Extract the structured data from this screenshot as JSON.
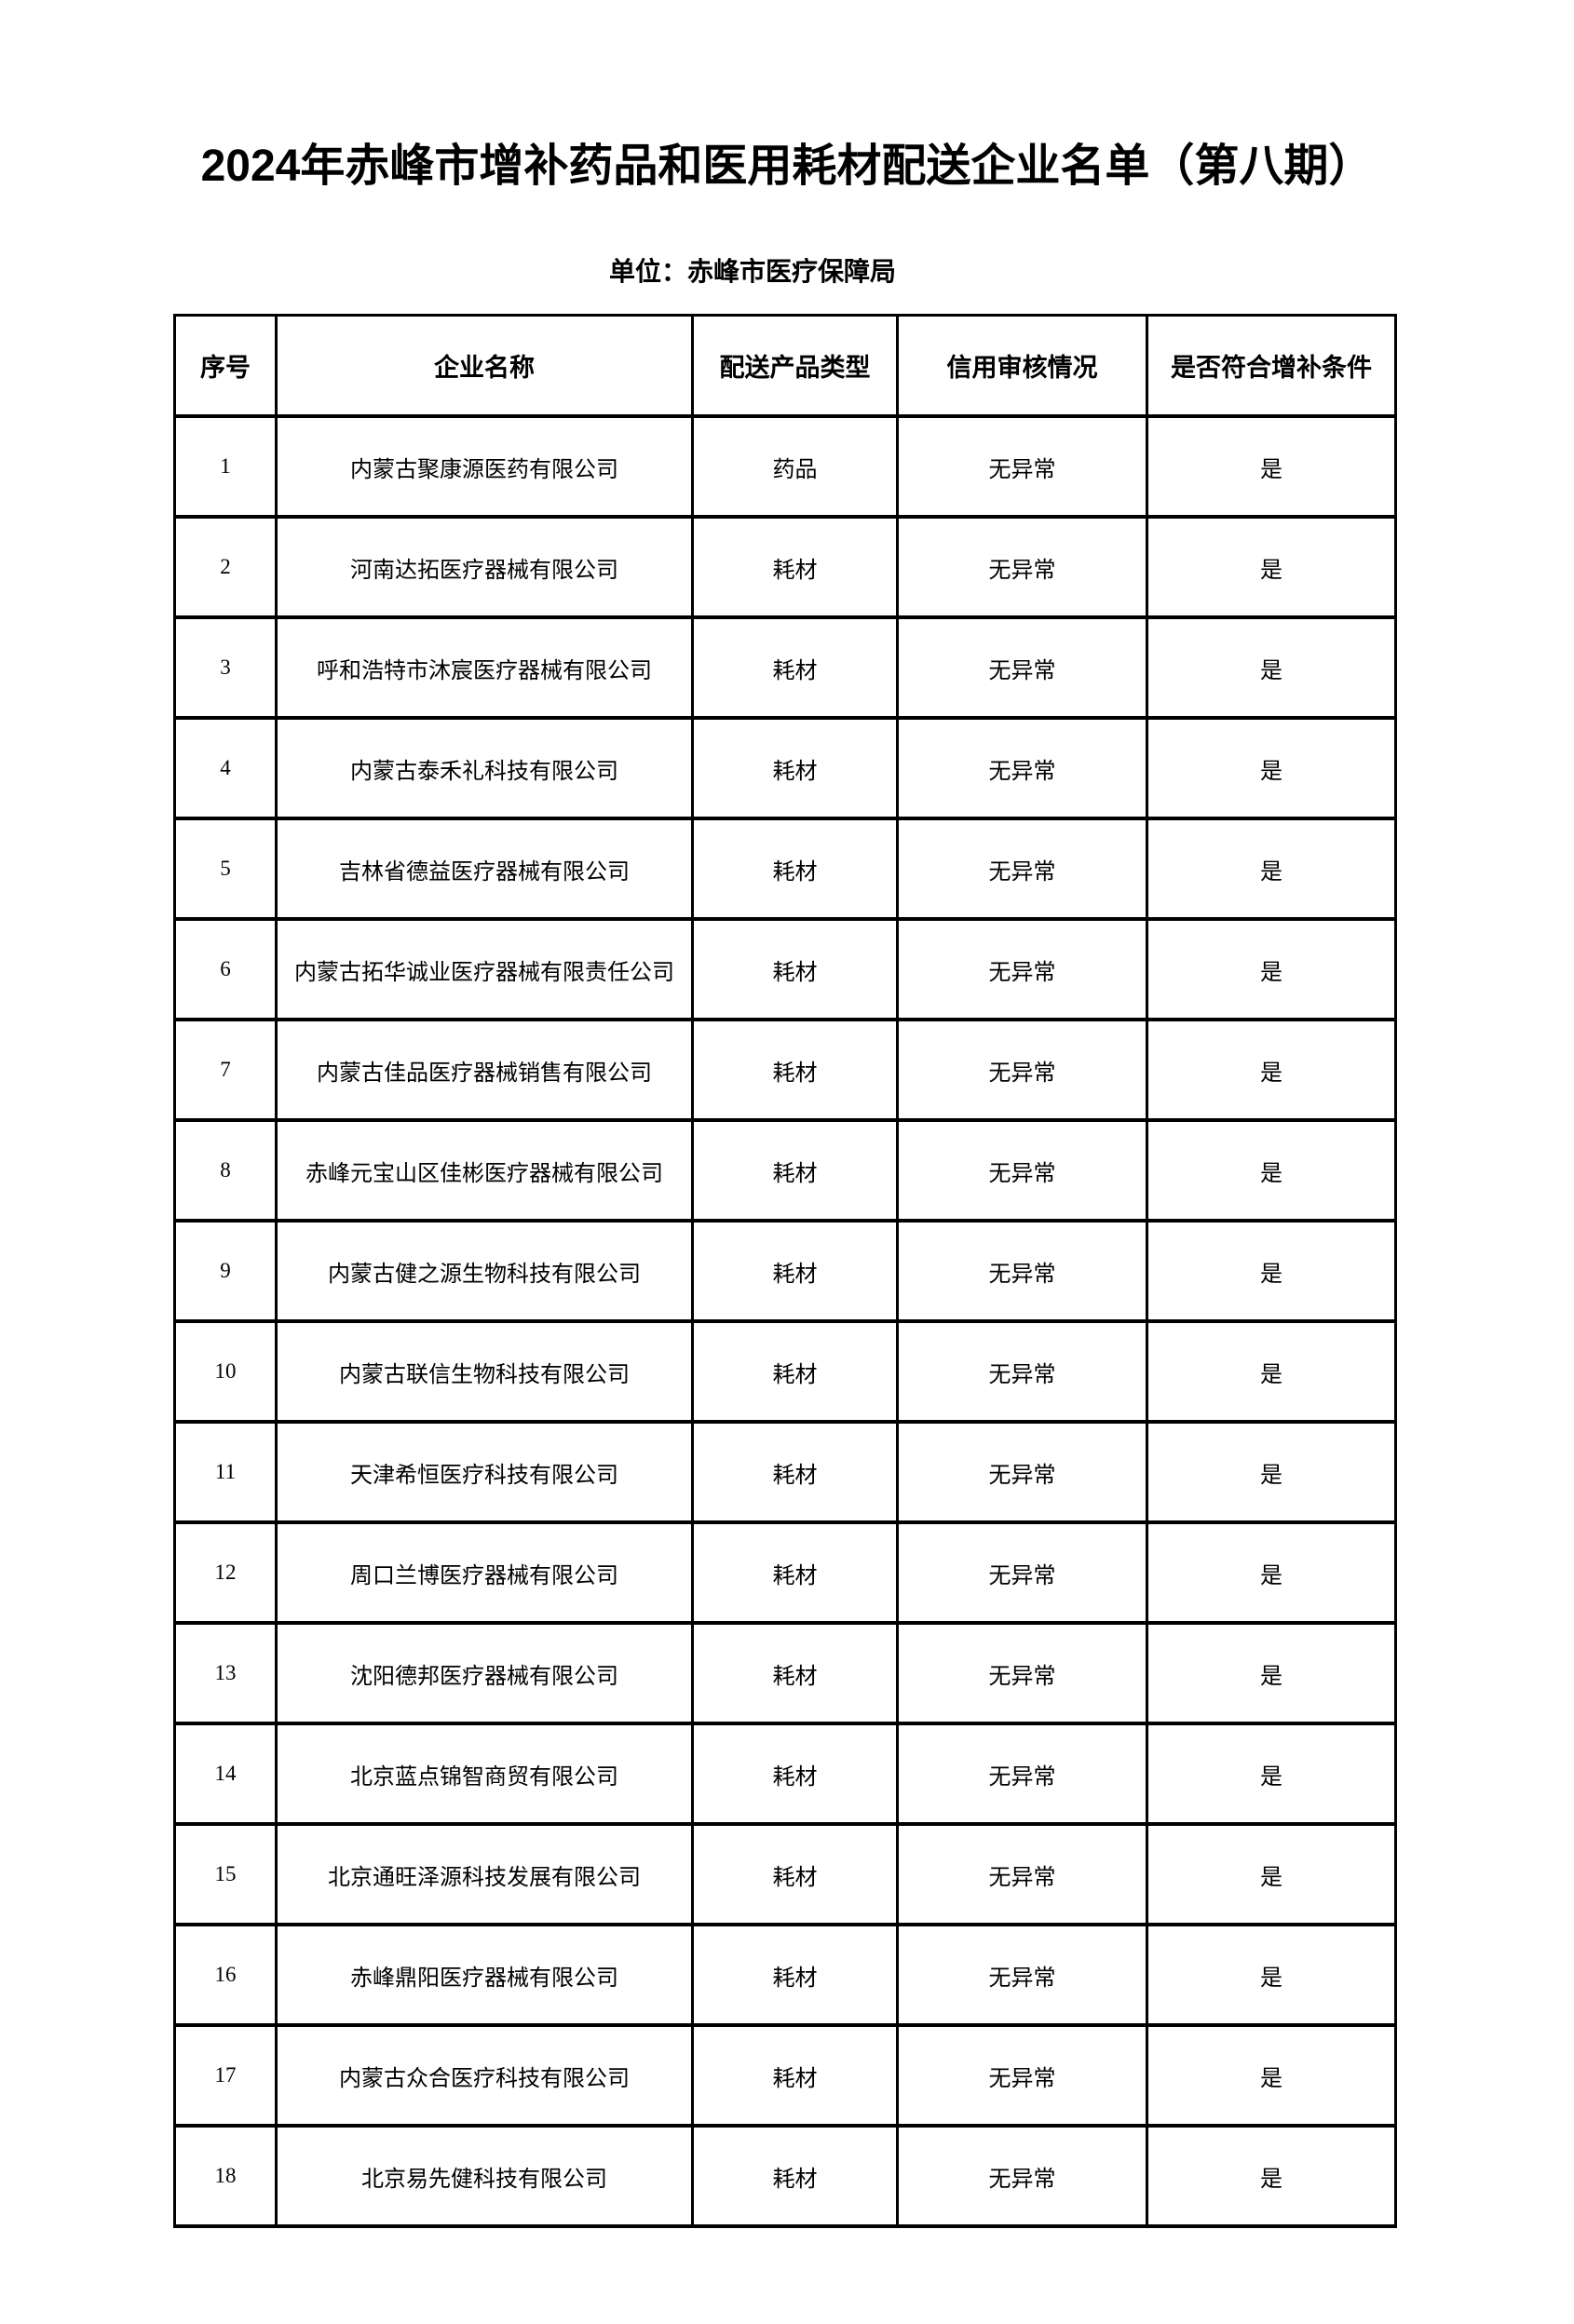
{
  "page": {
    "title": "2024年赤峰市增补药品和医用耗材配送企业名单（第八期）",
    "subtitle": "单位：赤峰市医疗保障局"
  },
  "table": {
    "headers": [
      "序号",
      "企业名称",
      "配送产品类型",
      "信用审核情况",
      "是否符合增补条件"
    ],
    "rows": [
      {
        "no": "1",
        "company": "内蒙古聚康源医药有限公司",
        "product_type": "药品",
        "credit_status": "无异常",
        "meets_criteria": "是"
      },
      {
        "no": "2",
        "company": "河南达拓医疗器械有限公司",
        "product_type": "耗材",
        "credit_status": "无异常",
        "meets_criteria": "是"
      },
      {
        "no": "3",
        "company": "呼和浩特市沐宸医疗器械有限公司",
        "product_type": "耗材",
        "credit_status": "无异常",
        "meets_criteria": "是"
      },
      {
        "no": "4",
        "company": "内蒙古泰禾礼科技有限公司",
        "product_type": "耗材",
        "credit_status": "无异常",
        "meets_criteria": "是"
      },
      {
        "no": "5",
        "company": "吉林省德益医疗器械有限公司",
        "product_type": "耗材",
        "credit_status": "无异常",
        "meets_criteria": "是"
      },
      {
        "no": "6",
        "company": "内蒙古拓华诚业医疗器械有限责任公司",
        "product_type": "耗材",
        "credit_status": "无异常",
        "meets_criteria": "是"
      },
      {
        "no": "7",
        "company": "内蒙古佳品医疗器械销售有限公司",
        "product_type": "耗材",
        "credit_status": "无异常",
        "meets_criteria": "是"
      },
      {
        "no": "8",
        "company": "赤峰元宝山区佳彬医疗器械有限公司",
        "product_type": "耗材",
        "credit_status": "无异常",
        "meets_criteria": "是"
      },
      {
        "no": "9",
        "company": "内蒙古健之源生物科技有限公司",
        "product_type": "耗材",
        "credit_status": "无异常",
        "meets_criteria": "是"
      },
      {
        "no": "10",
        "company": "内蒙古联信生物科技有限公司",
        "product_type": "耗材",
        "credit_status": "无异常",
        "meets_criteria": "是"
      },
      {
        "no": "11",
        "company": "天津希恒医疗科技有限公司",
        "product_type": "耗材",
        "credit_status": "无异常",
        "meets_criteria": "是"
      },
      {
        "no": "12",
        "company": "周口兰博医疗器械有限公司",
        "product_type": "耗材",
        "credit_status": "无异常",
        "meets_criteria": "是"
      },
      {
        "no": "13",
        "company": "沈阳德邦医疗器械有限公司",
        "product_type": "耗材",
        "credit_status": "无异常",
        "meets_criteria": "是"
      },
      {
        "no": "14",
        "company": "北京蓝点锦智商贸有限公司",
        "product_type": "耗材",
        "credit_status": "无异常",
        "meets_criteria": "是"
      },
      {
        "no": "15",
        "company": "北京通旺泽源科技发展有限公司",
        "product_type": "耗材",
        "credit_status": "无异常",
        "meets_criteria": "是"
      },
      {
        "no": "16",
        "company": "赤峰鼎阳医疗器械有限公司",
        "product_type": "耗材",
        "credit_status": "无异常",
        "meets_criteria": "是"
      },
      {
        "no": "17",
        "company": "内蒙古众合医疗科技有限公司",
        "product_type": "耗材",
        "credit_status": "无异常",
        "meets_criteria": "是"
      },
      {
        "no": "18",
        "company": "北京易先健科技有限公司",
        "product_type": "耗材",
        "credit_status": "无异常",
        "meets_criteria": "是"
      }
    ]
  }
}
